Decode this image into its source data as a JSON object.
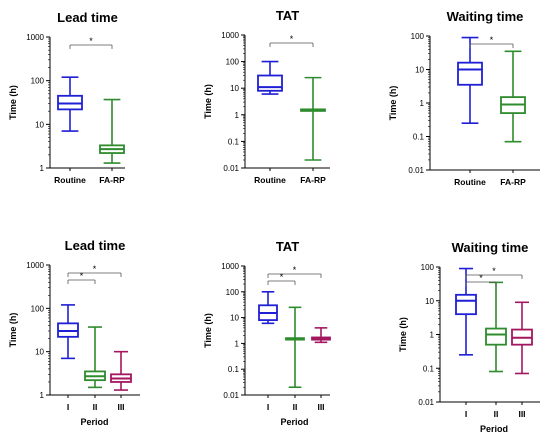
{
  "chart_data": [
    {
      "type": "boxplot",
      "title": "Lead time",
      "ylabel": "Time (h)",
      "xlabel": "",
      "yscale": "log",
      "ylim": [
        1,
        1000
      ],
      "yticks": [
        "1",
        "10",
        "100",
        "1000"
      ],
      "categories": [
        "Routine",
        "FA-RP"
      ],
      "colors": [
        "#1f1fd6",
        "#2e8b2e"
      ],
      "boxes": [
        {
          "min": 7,
          "q1": 22,
          "median": 30,
          "q3": 45,
          "max": 120
        },
        {
          "min": 1.3,
          "q1": 2.2,
          "median": 2.7,
          "q3": 3.3,
          "max": 37
        }
      ],
      "significance": [
        {
          "from": 0,
          "to": 1,
          "label": "*"
        }
      ]
    },
    {
      "type": "boxplot",
      "title": "TAT",
      "ylabel": "Time (h)",
      "xlabel": "",
      "yscale": "log",
      "ylim": [
        0.01,
        1000
      ],
      "yticks": [
        "0.01",
        "0.1",
        "1",
        "10",
        "100",
        "1000"
      ],
      "categories": [
        "Routine",
        "FA-RP"
      ],
      "colors": [
        "#1f1fd6",
        "#2e8b2e"
      ],
      "boxes": [
        {
          "min": 6,
          "q1": 8,
          "median": 11,
          "q3": 30,
          "max": 100
        },
        {
          "min": 0.02,
          "q1": 1.4,
          "median": 1.5,
          "q3": 1.6,
          "max": 25
        }
      ],
      "significance": [
        {
          "from": 0,
          "to": 1,
          "label": "*"
        }
      ]
    },
    {
      "type": "boxplot",
      "title": "Waiting time",
      "ylabel": "Time (h)",
      "xlabel": "",
      "yscale": "log",
      "ylim": [
        0.01,
        100
      ],
      "yticks": [
        "0.01",
        "0.1",
        "1",
        "10",
        "100"
      ],
      "categories": [
        "Routine",
        "FA-RP"
      ],
      "colors": [
        "#1f1fd6",
        "#2e8b2e"
      ],
      "boxes": [
        {
          "min": 0.25,
          "q1": 3.5,
          "median": 10,
          "q3": 16,
          "max": 90
        },
        {
          "min": 0.07,
          "q1": 0.5,
          "median": 0.9,
          "q3": 1.5,
          "max": 35
        }
      ],
      "significance": [
        {
          "from": 0,
          "to": 1,
          "label": "*"
        }
      ]
    },
    {
      "type": "boxplot",
      "title": "Lead time",
      "ylabel": "Time (h)",
      "xlabel": "Period",
      "yscale": "log",
      "ylim": [
        1,
        1000
      ],
      "yticks": [
        "1",
        "10",
        "100",
        "1000"
      ],
      "categories": [
        "I",
        "II",
        "III"
      ],
      "colors": [
        "#1f1fd6",
        "#2e8b2e",
        "#a3175f"
      ],
      "boxes": [
        {
          "min": 7,
          "q1": 22,
          "median": 30,
          "q3": 45,
          "max": 120
        },
        {
          "min": 1.5,
          "q1": 2.2,
          "median": 2.7,
          "q3": 3.5,
          "max": 37
        },
        {
          "min": 1.3,
          "q1": 2.0,
          "median": 2.4,
          "q3": 3.0,
          "max": 10
        }
      ],
      "significance": [
        {
          "from": 0,
          "to": 1,
          "label": "*"
        },
        {
          "from": 0,
          "to": 2,
          "label": "*"
        }
      ]
    },
    {
      "type": "boxplot",
      "title": "TAT",
      "ylabel": "Time (h)",
      "xlabel": "Period",
      "yscale": "log",
      "ylim": [
        0.01,
        1000
      ],
      "yticks": [
        "0.01",
        "0.1",
        "1",
        "10",
        "100",
        "1000"
      ],
      "categories": [
        "I",
        "II",
        "III"
      ],
      "colors": [
        "#1f1fd6",
        "#2e8b2e",
        "#a3175f"
      ],
      "boxes": [
        {
          "min": 6,
          "q1": 8,
          "median": 15,
          "q3": 30,
          "max": 100
        },
        {
          "min": 0.02,
          "q1": 1.4,
          "median": 1.5,
          "q3": 1.6,
          "max": 25
        },
        {
          "min": 1.1,
          "q1": 1.4,
          "median": 1.5,
          "q3": 1.7,
          "max": 4
        }
      ],
      "significance": [
        {
          "from": 0,
          "to": 1,
          "label": "*"
        },
        {
          "from": 0,
          "to": 2,
          "label": "*"
        }
      ]
    },
    {
      "type": "boxplot",
      "title": "Waiting time",
      "ylabel": "Time (h)",
      "xlabel": "Period",
      "yscale": "log",
      "ylim": [
        0.01,
        100
      ],
      "yticks": [
        "0.01",
        "0.1",
        "1",
        "10",
        "100"
      ],
      "categories": [
        "I",
        "II",
        "III"
      ],
      "colors": [
        "#1f1fd6",
        "#2e8b2e",
        "#a3175f"
      ],
      "boxes": [
        {
          "min": 0.25,
          "q1": 4,
          "median": 10,
          "q3": 15,
          "max": 90
        },
        {
          "min": 0.08,
          "q1": 0.5,
          "median": 1.0,
          "q3": 1.5,
          "max": 35
        },
        {
          "min": 0.07,
          "q1": 0.5,
          "median": 0.8,
          "q3": 1.4,
          "max": 9
        }
      ],
      "significance": [
        {
          "from": 0,
          "to": 1,
          "label": "*"
        },
        {
          "from": 0,
          "to": 2,
          "label": "*"
        }
      ]
    }
  ]
}
